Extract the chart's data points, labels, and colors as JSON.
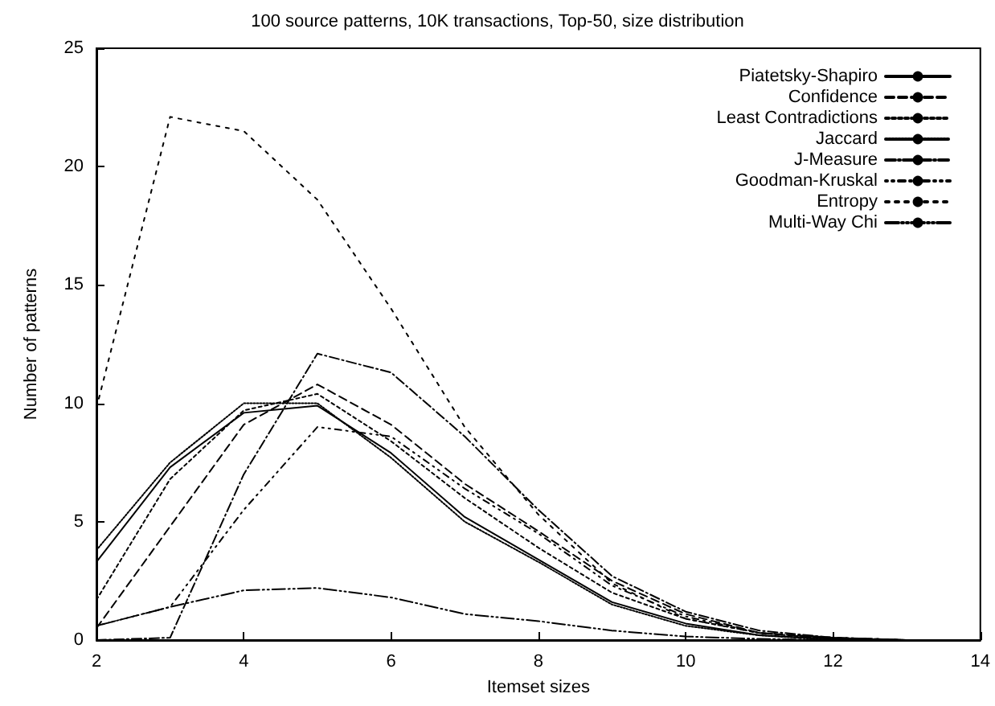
{
  "chart_data": {
    "type": "line",
    "title": "100 source patterns, 10K transactions, Top-50, size distribution",
    "xlabel": "Itemset sizes",
    "ylabel": "Number of patterns",
    "x": [
      2,
      3,
      4,
      5,
      6,
      7,
      8,
      9,
      10,
      11,
      12,
      13,
      14
    ],
    "xlim": [
      2,
      14
    ],
    "xticks": [
      2,
      4,
      6,
      8,
      10,
      12,
      14
    ],
    "ylim": [
      0,
      25
    ],
    "yticks": [
      0,
      5,
      10,
      15,
      20,
      25
    ],
    "grid": false,
    "legend": "top right",
    "marker": "none",
    "series": [
      {
        "name": "Piatetsky-Shapiro",
        "color": "#000000",
        "line_style": "solid",
        "values": [
          3.3,
          7.3,
          9.6,
          9.9,
          7.9,
          5.2,
          3.4,
          1.6,
          0.7,
          0.2,
          0.05,
          0,
          0
        ]
      },
      {
        "name": "Confidence",
        "color": "#000000",
        "line_style": "dashed",
        "values": [
          0.5,
          4.8,
          9.1,
          10.8,
          9.1,
          6.6,
          4.6,
          2.5,
          1.1,
          0.3,
          0.1,
          0,
          0
        ]
      },
      {
        "name": "Least Contradictions",
        "color": "#000000",
        "line_style": "dotted",
        "values": [
          1.7,
          6.8,
          9.7,
          10.4,
          8.4,
          6.0,
          3.9,
          2.0,
          0.9,
          0.3,
          0.05,
          0,
          0
        ]
      },
      {
        "name": "Jaccard",
        "color": "#000000",
        "line_style": "dotted",
        "values": [
          3.8,
          7.5,
          10.0,
          10.0,
          7.7,
          5.0,
          3.3,
          1.5,
          0.6,
          0.2,
          0,
          0,
          0
        ]
      },
      {
        "name": "J-Measure",
        "color": "#000000",
        "line_style": "dashed",
        "values": [
          0,
          0.1,
          7.0,
          12.1,
          11.3,
          8.6,
          5.5,
          2.7,
          1.2,
          0.4,
          0.1,
          0,
          0
        ]
      },
      {
        "name": "Goodman-Kruskal",
        "color": "#000000",
        "line_style": "dotted",
        "values": [
          0.6,
          1.4,
          5.5,
          9.0,
          8.6,
          6.4,
          4.5,
          2.3,
          1.0,
          0.3,
          0.1,
          0,
          0
        ]
      },
      {
        "name": "Entropy",
        "color": "#000000",
        "line_style": "dotted",
        "values": [
          9.8,
          22.1,
          21.5,
          18.6,
          14.0,
          9.0,
          5.3,
          2.4,
          0.9,
          0.3,
          0.1,
          0,
          0
        ]
      },
      {
        "name": "Multi-Way Chi",
        "color": "#000000",
        "line_style": "dashed",
        "values": [
          0.6,
          1.4,
          2.1,
          2.2,
          1.8,
          1.1,
          0.8,
          0.4,
          0.15,
          0.05,
          0,
          0,
          0
        ]
      }
    ]
  }
}
